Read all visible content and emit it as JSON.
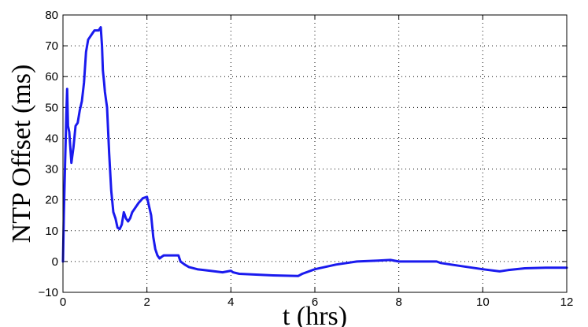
{
  "chart_data": {
    "type": "line",
    "title": "",
    "xlabel": "t (hrs)",
    "ylabel": "NTP Offset (ms)",
    "xlim": [
      0,
      12
    ],
    "ylim": [
      -10,
      80
    ],
    "x_ticks": [
      0,
      2,
      4,
      6,
      8,
      10,
      12
    ],
    "y_ticks": [
      -10,
      0,
      10,
      20,
      30,
      40,
      50,
      60,
      70,
      80
    ],
    "grid": true,
    "line_color": "#1a1aee",
    "series": [
      {
        "x": [
          0,
          0.02,
          0.05,
          0.08,
          0.1,
          0.12,
          0.15,
          0.2,
          0.25,
          0.3,
          0.35,
          0.4,
          0.45,
          0.5,
          0.55,
          0.6,
          0.65,
          0.7,
          0.75,
          0.8,
          0.85,
          0.9,
          0.93,
          0.95,
          0.98,
          1.0,
          1.05,
          1.1,
          1.15,
          1.2,
          1.25,
          1.3,
          1.35,
          1.4,
          1.45,
          1.5,
          1.55,
          1.6,
          1.65,
          1.7,
          1.8,
          1.9,
          2.0,
          2.05,
          2.1,
          2.15,
          2.2,
          2.25,
          2.3,
          2.35,
          2.4,
          2.45,
          2.5,
          2.6,
          2.75,
          2.8,
          2.9,
          3.0,
          3.2,
          3.5,
          3.8,
          4.0,
          4.05,
          4.2,
          4.5,
          5.0,
          5.3,
          5.6,
          5.7,
          6.0,
          6.5,
          7.0,
          7.5,
          7.8,
          8.0,
          8.5,
          8.9,
          9.0,
          9.5,
          10.0,
          10.4,
          10.6,
          11.0,
          11.5,
          12.0
        ],
        "y": [
          0,
          15,
          32,
          48,
          56,
          44,
          42,
          32,
          37,
          44,
          45,
          49,
          52,
          58,
          68,
          72,
          73,
          74,
          75,
          75,
          75,
          76,
          70,
          62,
          58,
          55,
          50,
          35,
          23,
          16,
          14,
          11,
          10.5,
          12,
          16,
          14,
          13,
          14,
          16,
          17,
          19,
          20.5,
          21,
          18,
          15,
          8,
          4,
          2,
          1,
          1.5,
          2,
          2,
          2,
          2,
          2,
          0,
          -1,
          -1.8,
          -2.5,
          -3,
          -3.5,
          -3,
          -3.5,
          -4,
          -4.2,
          -4.5,
          -4.6,
          -4.7,
          -4,
          -2.5,
          -1,
          0,
          0.3,
          0.5,
          0,
          0,
          0,
          -0.5,
          -1.5,
          -2.5,
          -3.2,
          -2.8,
          -2.2,
          -2,
          -2
        ]
      }
    ]
  }
}
